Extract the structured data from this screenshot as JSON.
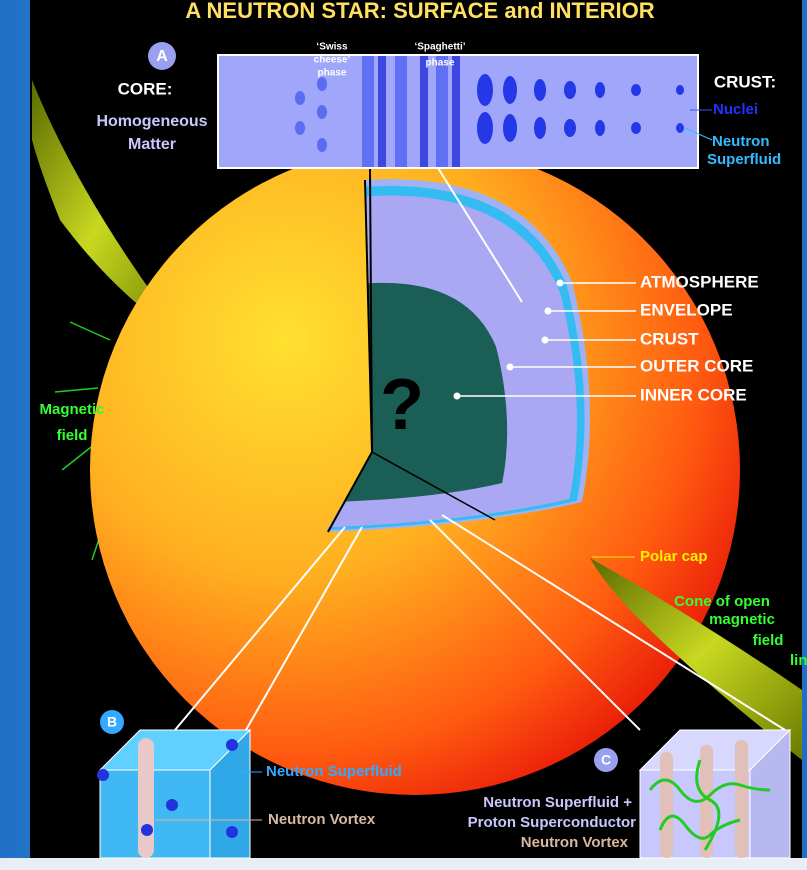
{
  "title": "A NEUTRON STAR: SURFACE and INTERIOR",
  "panel_a": {
    "marker": "A",
    "core_heading": "CORE:",
    "core_text": [
      "Homogeneous",
      "Matter"
    ],
    "swiss": [
      "‘Swiss",
      "cheese’",
      "phase"
    ],
    "spaghetti": [
      "‘Spaghetti’",
      "phase"
    ],
    "crust_heading": "CRUST:",
    "nuclei": "Nuclei",
    "crust_text": [
      "Neutron",
      "Superfluid"
    ]
  },
  "layers": [
    "ATMOSPHERE",
    "ENVELOPE",
    "CRUST",
    "OUTER CORE",
    "INNER CORE"
  ],
  "unknown": "?",
  "magnetic_field": [
    "Magnetic",
    "field"
  ],
  "polar_cap": "Polar cap",
  "cone": [
    "Cone of open",
    "magnetic",
    "field",
    "lines"
  ],
  "panel_b": {
    "marker": "B",
    "superfluid": "Neutron Superfluid",
    "vortex": "Neutron Vortex"
  },
  "panel_c": {
    "marker": "C",
    "text": [
      "Neutron Superfluid +",
      "Proton Superconductor"
    ],
    "vortex": "Neutron Vortex"
  }
}
